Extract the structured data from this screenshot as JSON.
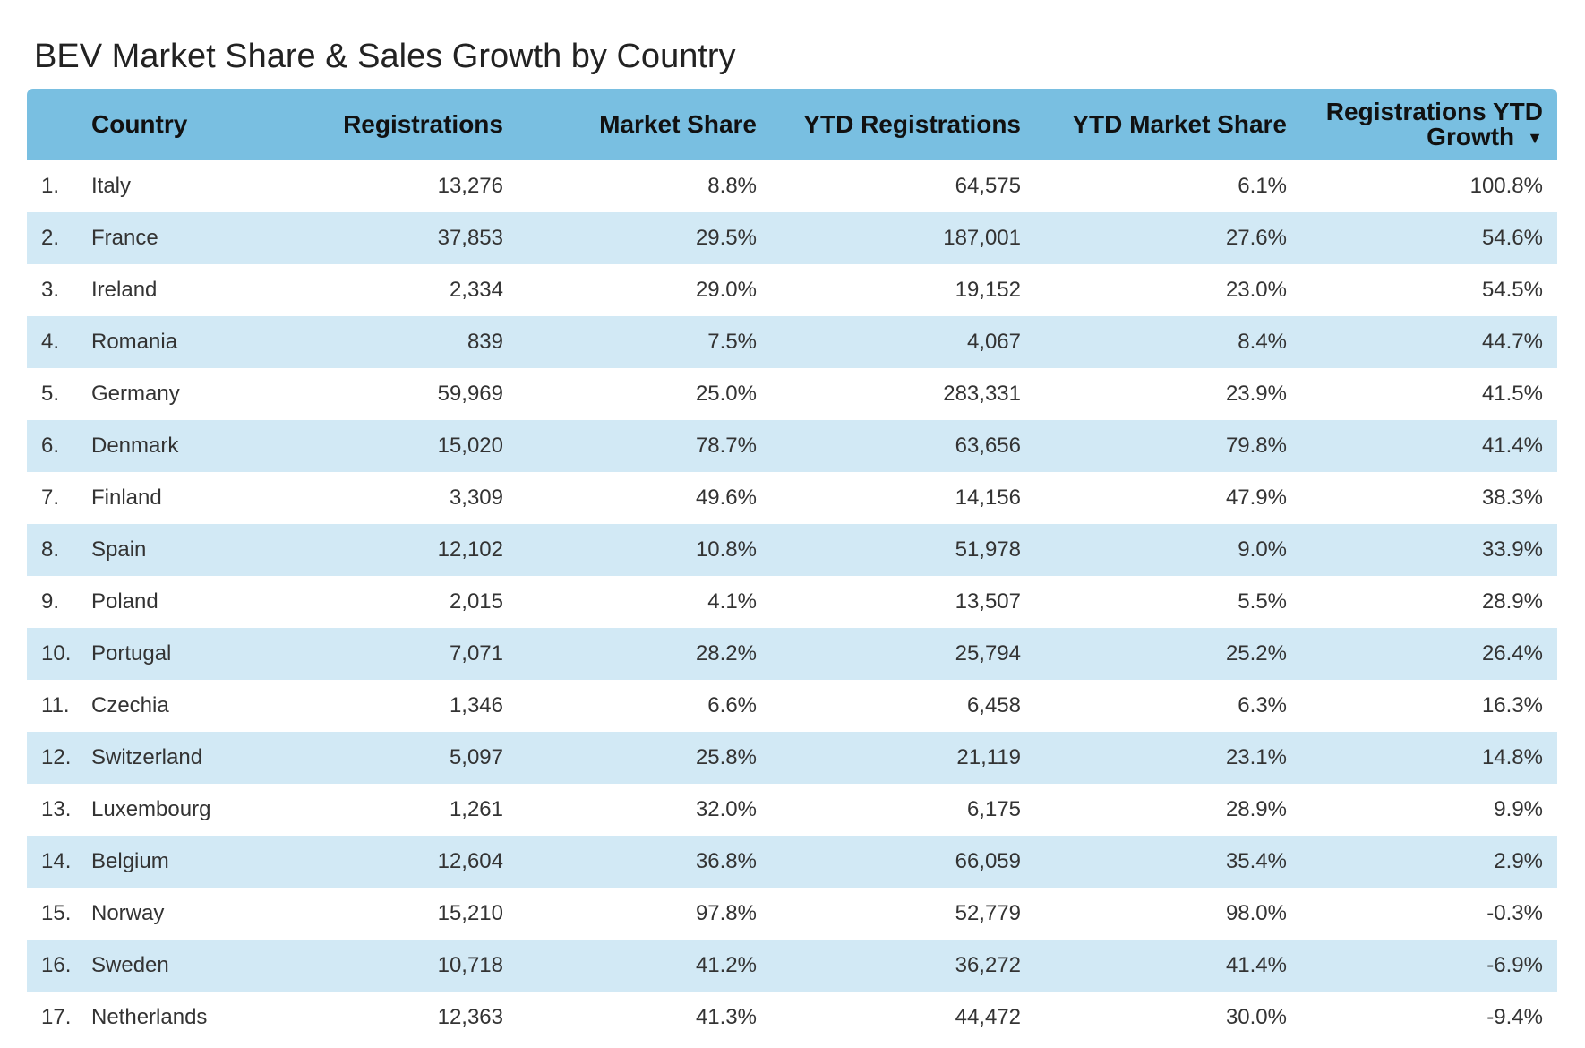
{
  "title": "BEV Market Share & Sales Growth by Country",
  "chart_data": {
    "type": "table",
    "columns": [
      "Country",
      "Registrations",
      "Market Share",
      "YTD Registrations",
      "YTD Market Share",
      "Registrations YTD Growth"
    ],
    "sort": {
      "column": "Registrations YTD Growth",
      "direction": "descending",
      "icon": "caret-down-icon"
    },
    "rows": [
      {
        "rank": "1.",
        "country": "Italy",
        "registrations": "13,276",
        "market_share": "8.8%",
        "ytd_registrations": "64,575",
        "ytd_market_share": "6.1%",
        "ytd_growth": "100.8%"
      },
      {
        "rank": "2.",
        "country": "France",
        "registrations": "37,853",
        "market_share": "29.5%",
        "ytd_registrations": "187,001",
        "ytd_market_share": "27.6%",
        "ytd_growth": "54.6%"
      },
      {
        "rank": "3.",
        "country": "Ireland",
        "registrations": "2,334",
        "market_share": "29.0%",
        "ytd_registrations": "19,152",
        "ytd_market_share": "23.0%",
        "ytd_growth": "54.5%"
      },
      {
        "rank": "4.",
        "country": "Romania",
        "registrations": "839",
        "market_share": "7.5%",
        "ytd_registrations": "4,067",
        "ytd_market_share": "8.4%",
        "ytd_growth": "44.7%"
      },
      {
        "rank": "5.",
        "country": "Germany",
        "registrations": "59,969",
        "market_share": "25.0%",
        "ytd_registrations": "283,331",
        "ytd_market_share": "23.9%",
        "ytd_growth": "41.5%"
      },
      {
        "rank": "6.",
        "country": "Denmark",
        "registrations": "15,020",
        "market_share": "78.7%",
        "ytd_registrations": "63,656",
        "ytd_market_share": "79.8%",
        "ytd_growth": "41.4%"
      },
      {
        "rank": "7.",
        "country": "Finland",
        "registrations": "3,309",
        "market_share": "49.6%",
        "ytd_registrations": "14,156",
        "ytd_market_share": "47.9%",
        "ytd_growth": "38.3%"
      },
      {
        "rank": "8.",
        "country": "Spain",
        "registrations": "12,102",
        "market_share": "10.8%",
        "ytd_registrations": "51,978",
        "ytd_market_share": "9.0%",
        "ytd_growth": "33.9%"
      },
      {
        "rank": "9.",
        "country": "Poland",
        "registrations": "2,015",
        "market_share": "4.1%",
        "ytd_registrations": "13,507",
        "ytd_market_share": "5.5%",
        "ytd_growth": "28.9%"
      },
      {
        "rank": "10.",
        "country": "Portugal",
        "registrations": "7,071",
        "market_share": "28.2%",
        "ytd_registrations": "25,794",
        "ytd_market_share": "25.2%",
        "ytd_growth": "26.4%"
      },
      {
        "rank": "11.",
        "country": "Czechia",
        "registrations": "1,346",
        "market_share": "6.6%",
        "ytd_registrations": "6,458",
        "ytd_market_share": "6.3%",
        "ytd_growth": "16.3%"
      },
      {
        "rank": "12.",
        "country": "Switzerland",
        "registrations": "5,097",
        "market_share": "25.8%",
        "ytd_registrations": "21,119",
        "ytd_market_share": "23.1%",
        "ytd_growth": "14.8%"
      },
      {
        "rank": "13.",
        "country": "Luxembourg",
        "registrations": "1,261",
        "market_share": "32.0%",
        "ytd_registrations": "6,175",
        "ytd_market_share": "28.9%",
        "ytd_growth": "9.9%"
      },
      {
        "rank": "14.",
        "country": "Belgium",
        "registrations": "12,604",
        "market_share": "36.8%",
        "ytd_registrations": "66,059",
        "ytd_market_share": "35.4%",
        "ytd_growth": "2.9%"
      },
      {
        "rank": "15.",
        "country": "Norway",
        "registrations": "15,210",
        "market_share": "97.8%",
        "ytd_registrations": "52,779",
        "ytd_market_share": "98.0%",
        "ytd_growth": "-0.3%"
      },
      {
        "rank": "16.",
        "country": "Sweden",
        "registrations": "10,718",
        "market_share": "41.2%",
        "ytd_registrations": "36,272",
        "ytd_market_share": "41.4%",
        "ytd_growth": "-6.9%"
      },
      {
        "rank": "17.",
        "country": "Netherlands",
        "registrations": "12,363",
        "market_share": "41.3%",
        "ytd_registrations": "44,472",
        "ytd_market_share": "30.0%",
        "ytd_growth": "-9.4%"
      }
    ]
  },
  "colors": {
    "header_bg": "#79bfe1",
    "stripe_bg": "#d2e9f5",
    "row_bg": "#ffffff",
    "header_text": "#111111",
    "cell_text": "#333333"
  }
}
